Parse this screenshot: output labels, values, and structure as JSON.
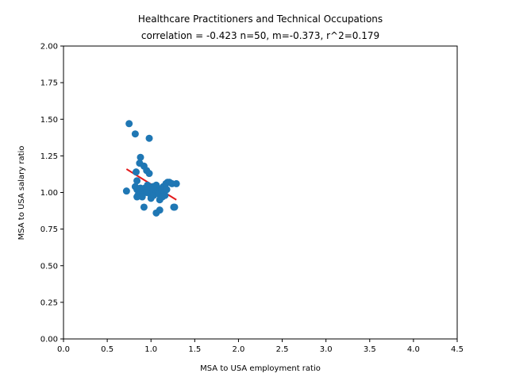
{
  "chart_data": {
    "type": "scatter",
    "title": "Healthcare Practitioners and Technical Occupations",
    "subtitle": "correlation = -0.423 n=50, m=-0.373, r^2=0.179",
    "xlabel": "MSA to USA employment ratio",
    "ylabel": "MSA to USA salary ratio",
    "xlim": [
      0.0,
      4.5
    ],
    "ylim": [
      0.0,
      2.0
    ],
    "xticks": [
      "0.0",
      "0.5",
      "1.0",
      "1.5",
      "2.0",
      "2.5",
      "3.0",
      "3.5",
      "4.0",
      "4.5"
    ],
    "yticks": [
      "0.00",
      "0.25",
      "0.50",
      "0.75",
      "1.00",
      "1.25",
      "1.50",
      "1.75",
      "2.00"
    ],
    "grid": false,
    "point_color": "#1f77b4",
    "fit_color": "#e41a1c",
    "points": [
      [
        0.75,
        1.47
      ],
      [
        0.82,
        1.4
      ],
      [
        0.98,
        1.37
      ],
      [
        0.88,
        1.24
      ],
      [
        0.87,
        1.2
      ],
      [
        0.92,
        1.18
      ],
      [
        0.95,
        1.15
      ],
      [
        0.98,
        1.13
      ],
      [
        0.83,
        1.14
      ],
      [
        0.84,
        1.08
      ],
      [
        0.72,
        1.01
      ],
      [
        0.82,
        1.04
      ],
      [
        0.84,
        1.02
      ],
      [
        0.86,
        1.01
      ],
      [
        0.89,
        1.0
      ],
      [
        0.85,
        0.98
      ],
      [
        0.9,
        0.97
      ],
      [
        0.84,
        0.97
      ],
      [
        0.93,
        1.03
      ],
      [
        0.96,
        1.05
      ],
      [
        0.97,
        1.02
      ],
      [
        0.99,
        0.99
      ],
      [
        1.0,
        0.96
      ],
      [
        1.01,
        1.0
      ],
      [
        1.03,
        0.98
      ],
      [
        1.05,
        1.02
      ],
      [
        1.06,
        1.05
      ],
      [
        1.07,
        1.03
      ],
      [
        1.08,
        1.01
      ],
      [
        1.09,
        0.99
      ],
      [
        1.1,
        0.95
      ],
      [
        1.12,
        1.02
      ],
      [
        1.14,
        1.04
      ],
      [
        1.15,
        1.0
      ],
      [
        1.16,
        0.98
      ],
      [
        1.17,
        1.06
      ],
      [
        1.19,
        1.07
      ],
      [
        1.21,
        1.07
      ],
      [
        1.24,
        1.06
      ],
      [
        1.26,
        0.9
      ],
      [
        1.27,
        0.9
      ],
      [
        1.29,
        1.06
      ],
      [
        0.92,
        0.9
      ],
      [
        1.06,
        0.86
      ],
      [
        1.1,
        0.88
      ],
      [
        1.18,
        1.02
      ],
      [
        0.88,
        1.03
      ],
      [
        0.95,
        1.0
      ],
      [
        1.02,
        1.04
      ],
      [
        1.13,
        0.97
      ]
    ],
    "fit_line": {
      "x": [
        0.72,
        1.29
      ],
      "y": [
        1.16,
        0.95
      ]
    }
  }
}
